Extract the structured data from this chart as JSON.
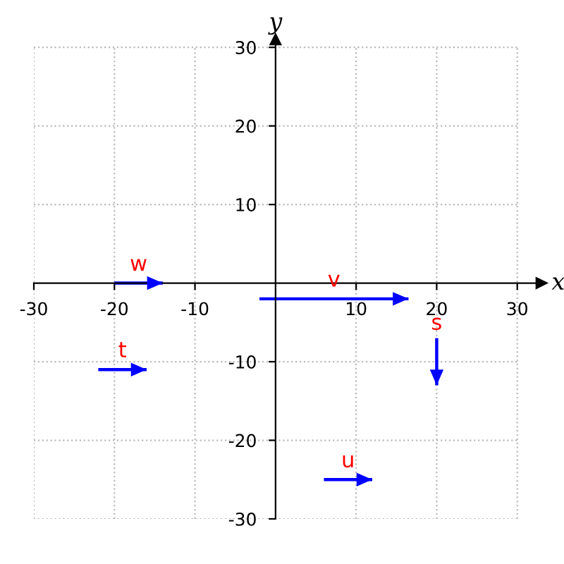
{
  "chart_data": {
    "type": "line",
    "xlabel": "x",
    "ylabel": "y",
    "xlim": [
      -30,
      33
    ],
    "ylim": [
      -30,
      31
    ],
    "xticks": [
      -30,
      -20,
      -10,
      10,
      20,
      30
    ],
    "yticks": [
      -30,
      -20,
      -10,
      10,
      20,
      30
    ],
    "grid": true,
    "marker": "none",
    "line_style": "solid",
    "legend": false,
    "series": [
      {
        "name": "w",
        "color": "#0000ff",
        "x": [
          -20,
          -14
        ],
        "values": [
          0,
          0
        ]
      },
      {
        "name": "v",
        "color": "#0000ff",
        "x": [
          -2,
          16.5
        ],
        "values": [
          -2,
          -2
        ]
      },
      {
        "name": "t",
        "color": "#0000ff",
        "x": [
          -22,
          -16
        ],
        "values": [
          -11,
          -11
        ]
      },
      {
        "name": "s",
        "color": "#0000ff",
        "x": [
          20,
          20
        ],
        "values": [
          -7,
          -13
        ]
      },
      {
        "name": "u",
        "color": "#0000ff",
        "x": [
          6,
          12
        ],
        "values": [
          -25,
          -25
        ]
      }
    ]
  }
}
